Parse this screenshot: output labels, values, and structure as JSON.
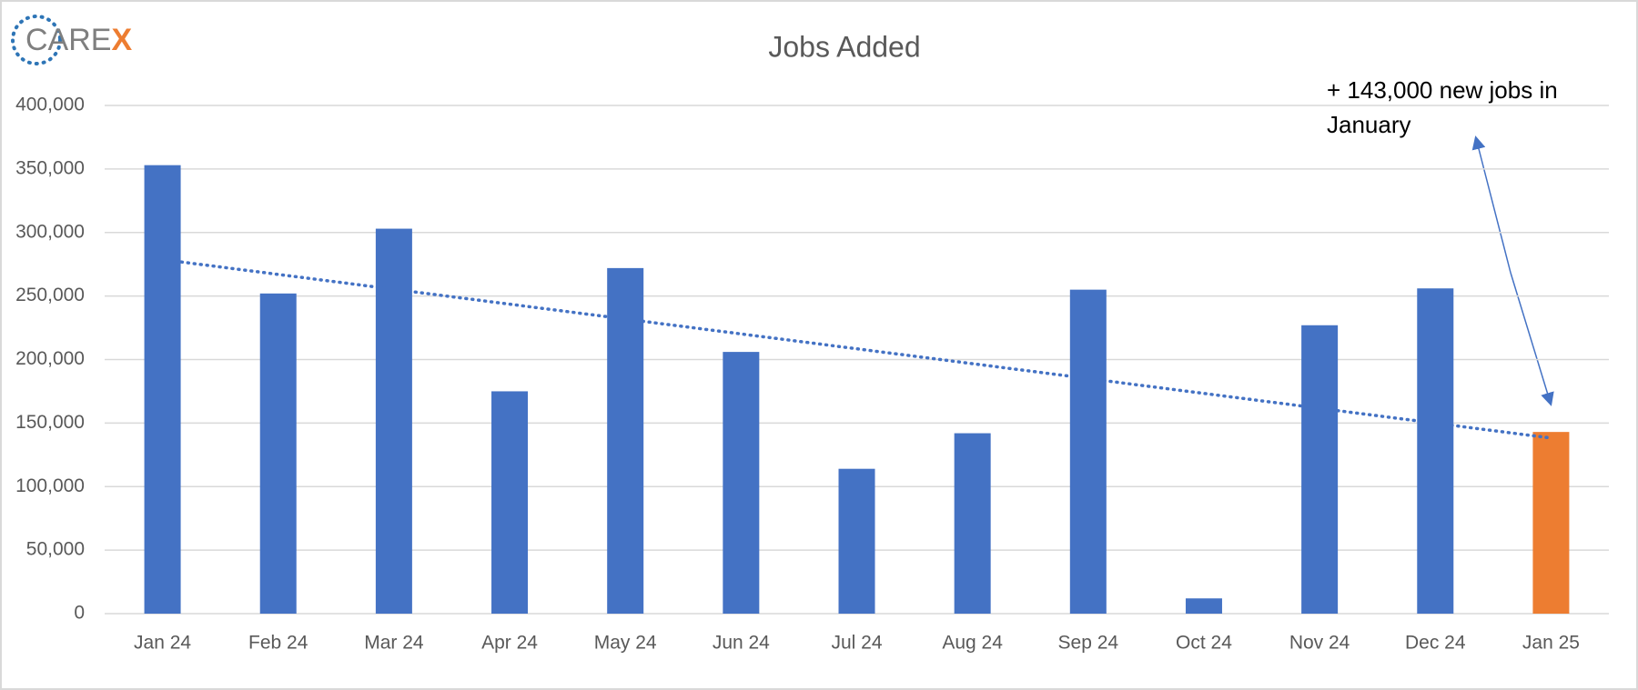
{
  "chart_data": {
    "type": "bar",
    "title": "Jobs Added",
    "logo": {
      "text": "CARE",
      "accent": "X"
    },
    "annotation": "+ 143,000 new jobs in January",
    "categories": [
      "Jan 24",
      "Feb 24",
      "Mar 24",
      "Apr 24",
      "May 24",
      "Jun 24",
      "Jul 24",
      "Aug 24",
      "Sep 24",
      "Oct 24",
      "Nov 24",
      "Dec 24",
      "Jan 25"
    ],
    "values": [
      353000,
      252000,
      303000,
      175000,
      272000,
      206000,
      114000,
      142000,
      255000,
      12000,
      227000,
      256000,
      143000
    ],
    "colors": [
      "#4472c4",
      "#4472c4",
      "#4472c4",
      "#4472c4",
      "#4472c4",
      "#4472c4",
      "#4472c4",
      "#4472c4",
      "#4472c4",
      "#4472c4",
      "#4472c4",
      "#4472c4",
      "#ed7d31"
    ],
    "trendline": true,
    "trend_color": "#4472c4",
    "ylim": [
      0,
      400000
    ],
    "yticks": [
      0,
      {
        "value": 50000,
        "label": "50,000"
      },
      {
        "value": 100000,
        "label": "100,000"
      },
      {
        "value": 150000,
        "label": "150,000"
      },
      {
        "value": 200000,
        "label": "200,000"
      },
      {
        "value": 250000,
        "label": "250,000"
      },
      {
        "value": 300000,
        "label": "300,000"
      },
      {
        "value": 350000,
        "label": "350,000"
      },
      {
        "value": 400000,
        "label": "400,000"
      }
    ],
    "grid": true
  }
}
